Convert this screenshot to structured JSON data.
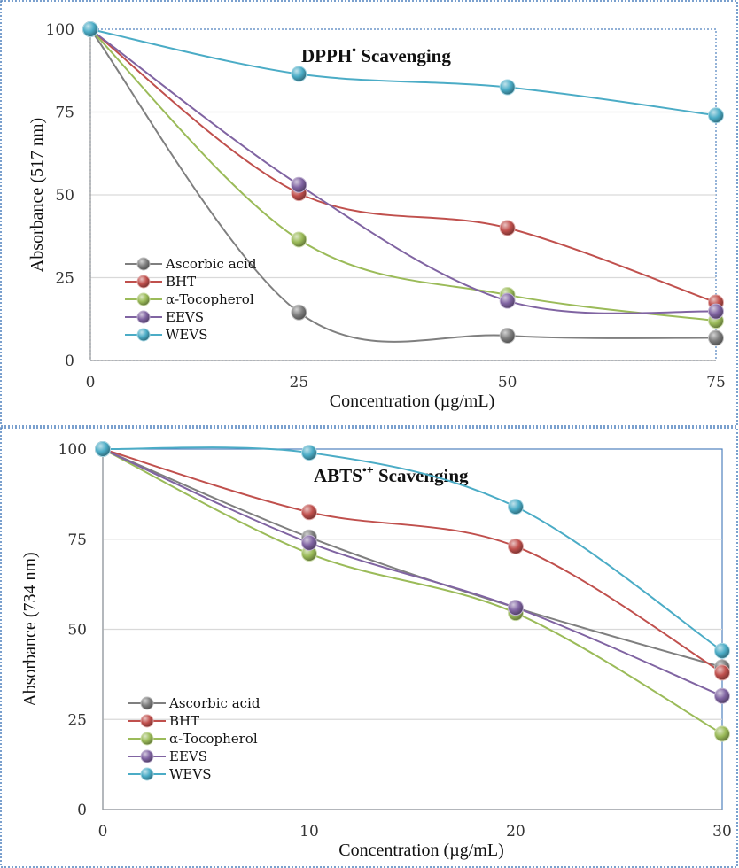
{
  "chart_data": [
    {
      "type": "line",
      "title": "DPPH",
      "title_superscript": "•",
      "title_suffix": " Scavenging",
      "xlabel": "Concentration (µg/mL)",
      "ylabel": "Absorbance (517 nm)",
      "x": [
        0,
        25,
        50,
        75
      ],
      "xticks": [
        "0",
        "25",
        "50",
        "75"
      ],
      "yticks": [
        "0",
        "25",
        "50",
        "75",
        "100"
      ],
      "xlim": [
        0,
        75
      ],
      "ylim": [
        0,
        100
      ],
      "grid": true,
      "legend_position": "bottom-left",
      "series": [
        {
          "name": "Ascorbic acid",
          "color": "#7f7f7f",
          "values": [
            100,
            14.5,
            7.5,
            6.8
          ]
        },
        {
          "name": "BHT",
          "color": "#c0504d",
          "values": [
            100,
            50.5,
            40,
            17.5
          ]
        },
        {
          "name": "α-Tocopherol",
          "color": "#9bbb59",
          "values": [
            100,
            36.5,
            19.8,
            12
          ]
        },
        {
          "name": "EEVS",
          "color": "#8064a2",
          "values": [
            100,
            53,
            18,
            14.8
          ]
        },
        {
          "name": "WEVS",
          "color": "#4bacc6",
          "values": [
            100,
            86.5,
            82.5,
            74
          ]
        }
      ]
    },
    {
      "type": "line",
      "title": "ABTS",
      "title_superscript": "•+",
      "title_suffix": " Scavenging",
      "xlabel": "Concentration (µg/mL)",
      "ylabel": "Absorbance (734 nm)",
      "x": [
        0,
        10,
        20,
        30
      ],
      "xticks": [
        "0",
        "10",
        "20",
        "30"
      ],
      "yticks": [
        "0",
        "25",
        "50",
        "75",
        "100"
      ],
      "xlim": [
        0,
        30
      ],
      "ylim": [
        0,
        100
      ],
      "grid": true,
      "legend_position": "bottom-left",
      "series": [
        {
          "name": "Ascorbic acid",
          "color": "#7f7f7f",
          "values": [
            100,
            75.5,
            56,
            39.5
          ]
        },
        {
          "name": "BHT",
          "color": "#c0504d",
          "values": [
            100,
            82.5,
            73,
            38
          ]
        },
        {
          "name": "α-Tocopherol",
          "color": "#9bbb59",
          "values": [
            100,
            71,
            54.5,
            21
          ]
        },
        {
          "name": "EEVS",
          "color": "#8064a2",
          "values": [
            100,
            74,
            56,
            31.5
          ]
        },
        {
          "name": "WEVS",
          "color": "#4bacc6",
          "values": [
            100,
            99,
            84,
            44
          ]
        }
      ]
    }
  ]
}
